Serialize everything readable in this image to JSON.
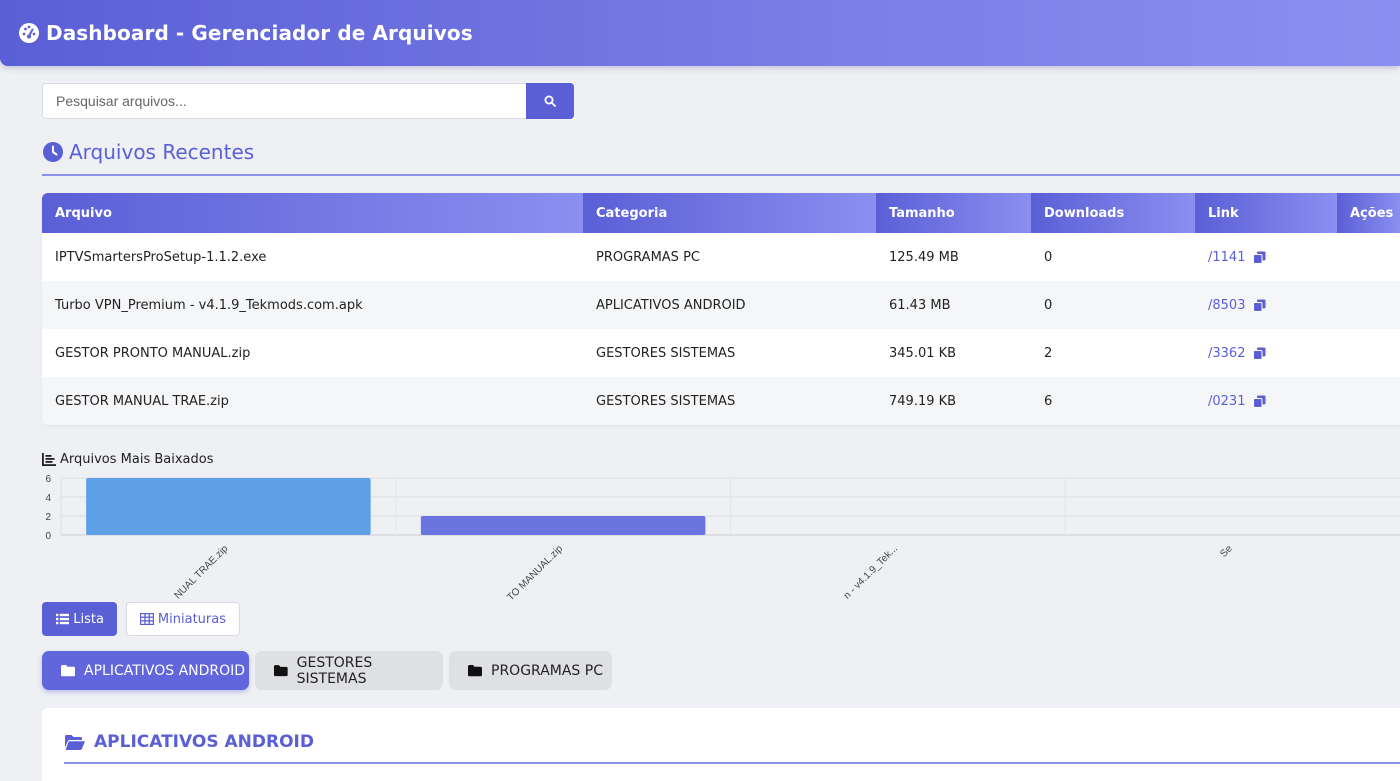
{
  "header": {
    "title": "Dashboard - Gerenciador de Arquivos",
    "logo_icon": "tachometer-icon"
  },
  "search": {
    "placeholder": "Pesquisar arquivos...",
    "value": "",
    "button_icon": "search-icon"
  },
  "recent": {
    "title": "Arquivos Recentes",
    "icon": "clock-icon",
    "columns": [
      "Arquivo",
      "Categoria",
      "Tamanho",
      "Downloads",
      "Link",
      "Ações"
    ],
    "rows": [
      {
        "file": "IPTVSmartersProSetup-1.1.2.exe",
        "category": "PROGRAMAS PC",
        "size": "125.49 MB",
        "downloads": "0",
        "link": "/1141"
      },
      {
        "file": "Turbo VPN_Premium - v4.1.9_Tekmods.com.apk",
        "category": "APLICATIVOS ANDROID",
        "size": "61.43 MB",
        "downloads": "0",
        "link": "/8503"
      },
      {
        "file": "GESTOR PRONTO MANUAL.zip",
        "category": "GESTORES SISTEMAS",
        "size": "345.01 KB",
        "downloads": "2",
        "link": "/3362"
      },
      {
        "file": "GESTOR MANUAL TRAE.zip",
        "category": "GESTORES SISTEMAS",
        "size": "749.19 KB",
        "downloads": "6",
        "link": "/0231"
      }
    ]
  },
  "most_downloaded": {
    "title": "Arquivos Mais Baixados",
    "icon": "chart-bar-icon"
  },
  "chart_data": {
    "type": "bar",
    "categories": [
      "NUAL TRAE.zip",
      "TO MANUAL.zip",
      "n - v4.1.9_Tek...",
      "Se"
    ],
    "values": [
      6,
      2,
      0,
      0
    ],
    "yticks": [
      "0",
      "2",
      "4",
      "6"
    ],
    "ylim": [
      0,
      6
    ],
    "title": "",
    "xlabel": "",
    "ylabel": "",
    "bar_colors": [
      "#5f9fe6",
      "#6a74de",
      "#6a74de",
      "#6a74de"
    ],
    "grid": true
  },
  "view_toggle": {
    "list_label": "Lista",
    "thumbs_label": "Miniaturas"
  },
  "category_tabs": [
    "APLICATIVOS ANDROID",
    "GESTORES SISTEMAS",
    "PROGRAMAS PC"
  ],
  "panel": {
    "title": "APLICATIVOS ANDROID",
    "icon": "folder-open-icon"
  },
  "colors": {
    "accent": "#5a5fd6",
    "accent_light": "#8b8ff0"
  }
}
